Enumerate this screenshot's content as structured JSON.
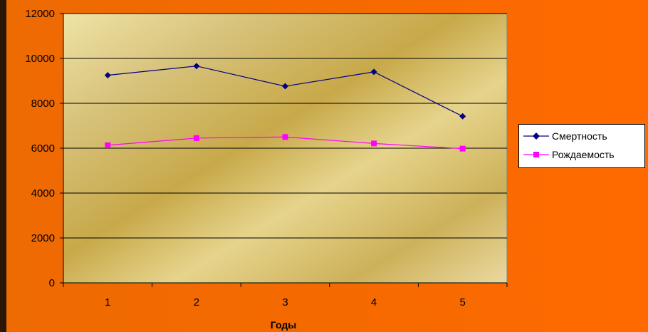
{
  "chart_data": {
    "type": "line",
    "xlabel": "Годы",
    "ylabel": "",
    "x": [
      1,
      2,
      3,
      4,
      5
    ],
    "ylim": [
      0,
      12000
    ],
    "yticks": [
      0,
      2000,
      4000,
      6000,
      8000,
      10000,
      12000
    ],
    "grid": true,
    "legend_position": "right",
    "series": [
      {
        "name": "Смертность",
        "values": [
          9250,
          9660,
          8760,
          9400,
          7420
        ],
        "color": "#000080",
        "marker": "diamond"
      },
      {
        "name": "Рождаемость",
        "values": [
          6130,
          6450,
          6500,
          6210,
          5980
        ],
        "color": "#ff00ff",
        "marker": "square"
      }
    ]
  }
}
